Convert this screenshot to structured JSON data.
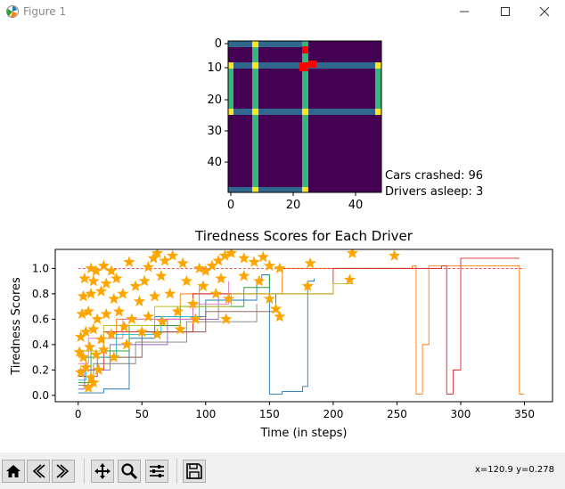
{
  "window": {
    "title": "Figure 1",
    "icons": {
      "app": "matplotlib-icon",
      "minimize": "minimize-icon",
      "maximize": "maximize-icon",
      "close": "close-icon"
    }
  },
  "grid_plot": {
    "yticks": [
      "0",
      "10",
      "20",
      "30",
      "40"
    ],
    "xticks": [
      "0",
      "20",
      "40"
    ],
    "colors": {
      "background": "#440154",
      "road_h": "#31688e",
      "road_v": "#35b779",
      "intersection": "#fde725",
      "car": "#ff0000"
    }
  },
  "status": {
    "cars_crashed": "Cars crashed: 96",
    "drivers_asleep": "Drivers asleep: 3"
  },
  "chart_data": {
    "type": "line",
    "title": "Tiredness Scores for Each Driver",
    "xlabel": "Time (in steps)",
    "ylabel": "Tiredness Scores",
    "xticks": [
      "0",
      "50",
      "100",
      "150",
      "200",
      "250",
      "300",
      "350"
    ],
    "yticks": [
      "0.0",
      "0.2",
      "0.4",
      "0.6",
      "0.8",
      "1.0"
    ],
    "xlim": [
      -18,
      372
    ],
    "ylim": [
      -0.05,
      1.15
    ],
    "threshold": 1.0,
    "marker_color": "#ffa500",
    "star_points": [
      [
        10,
        1.0
      ],
      [
        14,
        0.98
      ],
      [
        20,
        1.02
      ],
      [
        26,
        0.98
      ],
      [
        40,
        1.05
      ],
      [
        55,
        1.01
      ],
      [
        59,
        1.08
      ],
      [
        62,
        1.12
      ],
      [
        68,
        1.06
      ],
      [
        74,
        1.1
      ],
      [
        82,
        1.04
      ],
      [
        95,
        1.0
      ],
      [
        100,
        0.98
      ],
      [
        105,
        1.02
      ],
      [
        110,
        1.06
      ],
      [
        115,
        1.1
      ],
      [
        120,
        1.12
      ],
      [
        130,
        1.08
      ],
      [
        138,
        1.05
      ],
      [
        145,
        1.09
      ],
      [
        150,
        1.02
      ],
      [
        158,
        1.0
      ],
      [
        182,
        1.04
      ],
      [
        215,
        1.12
      ],
      [
        248,
        1.1
      ],
      [
        5,
        0.92
      ],
      [
        12,
        0.9
      ],
      [
        22,
        0.88
      ],
      [
        30,
        0.92
      ],
      [
        45,
        0.86
      ],
      [
        52,
        0.9
      ],
      [
        65,
        0.94
      ],
      [
        85,
        0.9
      ],
      [
        98,
        0.86
      ],
      [
        112,
        0.92
      ],
      [
        130,
        0.94
      ],
      [
        142,
        0.9
      ],
      [
        180,
        0.86
      ],
      [
        213,
        0.91
      ],
      [
        4,
        0.78
      ],
      [
        10,
        0.8
      ],
      [
        18,
        0.82
      ],
      [
        28,
        0.76
      ],
      [
        35,
        0.8
      ],
      [
        48,
        0.74
      ],
      [
        60,
        0.78
      ],
      [
        72,
        0.8
      ],
      [
        90,
        0.72
      ],
      [
        108,
        0.8
      ],
      [
        118,
        0.76
      ],
      [
        150,
        0.76
      ],
      [
        155,
        0.68
      ],
      [
        3,
        0.64
      ],
      [
        8,
        0.66
      ],
      [
        15,
        0.6
      ],
      [
        22,
        0.64
      ],
      [
        32,
        0.66
      ],
      [
        42,
        0.6
      ],
      [
        55,
        0.62
      ],
      [
        66,
        0.58
      ],
      [
        78,
        0.66
      ],
      [
        92,
        0.6
      ],
      [
        116,
        0.6
      ],
      [
        158,
        0.62
      ],
      [
        2,
        0.46
      ],
      [
        6,
        0.5
      ],
      [
        12,
        0.52
      ],
      [
        18,
        0.44
      ],
      [
        26,
        0.48
      ],
      [
        36,
        0.54
      ],
      [
        50,
        0.5
      ],
      [
        62,
        0.48
      ],
      [
        80,
        0.52
      ],
      [
        1,
        0.34
      ],
      [
        4,
        0.3
      ],
      [
        9,
        0.38
      ],
      [
        14,
        0.32
      ],
      [
        20,
        0.36
      ],
      [
        28,
        0.3
      ],
      [
        38,
        0.4
      ],
      [
        2,
        0.18
      ],
      [
        6,
        0.22
      ],
      [
        10,
        0.14
      ],
      [
        16,
        0.2
      ],
      [
        8,
        0.06
      ],
      [
        12,
        0.1
      ]
    ],
    "series": [
      {
        "color": "#1f77b4",
        "points": [
          [
            0,
            0.02
          ],
          [
            20,
            0.05
          ],
          [
            40,
            0.45
          ],
          [
            60,
            0.62
          ],
          [
            100,
            0.75
          ],
          [
            140,
            0.9
          ],
          [
            144,
            0.95
          ],
          [
            150,
            0.01
          ],
          [
            160,
            0.03
          ],
          [
            176,
            0.07
          ],
          [
            180,
            0.9
          ],
          [
            185,
            0.92
          ]
        ]
      },
      {
        "color": "#ff7f0e",
        "points": [
          [
            0,
            0.3
          ],
          [
            30,
            0.6
          ],
          [
            80,
            0.8
          ],
          [
            160,
            1.0
          ],
          [
            262,
            1.02
          ],
          [
            265,
            0.01
          ],
          [
            270,
            0.4
          ],
          [
            275,
            1.02
          ],
          [
            330,
            1.02
          ],
          [
            342,
            1.02
          ],
          [
            346,
            0.01
          ],
          [
            350,
            0.01
          ]
        ]
      },
      {
        "color": "#d62728",
        "points": [
          [
            0,
            0.2
          ],
          [
            20,
            0.5
          ],
          [
            90,
            0.8
          ],
          [
            200,
            1.0
          ],
          [
            285,
            1.02
          ],
          [
            289,
            0.01
          ],
          [
            294,
            0.2
          ],
          [
            300,
            1.08
          ],
          [
            346,
            1.08
          ]
        ]
      },
      {
        "color": "#2ca02c",
        "points": [
          [
            0,
            0.1
          ],
          [
            10,
            0.35
          ],
          [
            40,
            0.55
          ],
          [
            80,
            0.7
          ],
          [
            130,
            0.85
          ],
          [
            150,
            0.95
          ]
        ]
      },
      {
        "color": "#9467bd",
        "points": [
          [
            0,
            0.05
          ],
          [
            5,
            0.2
          ],
          [
            25,
            0.4
          ],
          [
            70,
            0.6
          ],
          [
            110,
            0.78
          ]
        ]
      },
      {
        "color": "#8c564b",
        "points": [
          [
            0,
            0.15
          ],
          [
            15,
            0.3
          ],
          [
            50,
            0.5
          ],
          [
            100,
            0.66
          ],
          [
            155,
            0.8
          ]
        ]
      },
      {
        "color": "#e377c2",
        "points": [
          [
            0,
            0.25
          ],
          [
            8,
            0.45
          ],
          [
            35,
            0.6
          ],
          [
            90,
            0.72
          ],
          [
            118,
            0.9
          ]
        ]
      },
      {
        "color": "#7f7f7f",
        "points": [
          [
            0,
            0.08
          ],
          [
            12,
            0.25
          ],
          [
            45,
            0.42
          ],
          [
            85,
            0.58
          ],
          [
            140,
            0.72
          ]
        ]
      },
      {
        "color": "#bcbd22",
        "points": [
          [
            0,
            0.35
          ],
          [
            20,
            0.55
          ],
          [
            60,
            0.7
          ],
          [
            120,
            0.8
          ],
          [
            200,
            0.88
          ],
          [
            215,
            0.9
          ]
        ]
      },
      {
        "color": "#17becf",
        "points": [
          [
            0,
            0.12
          ],
          [
            6,
            0.3
          ],
          [
            30,
            0.48
          ],
          [
            65,
            0.62
          ],
          [
            95,
            0.86
          ]
        ]
      }
    ]
  },
  "toolbar": {
    "icons": [
      "home-icon",
      "back-icon",
      "forward-icon",
      "pan-icon",
      "zoom-icon",
      "configure-subplots-icon",
      "save-icon"
    ],
    "coords": "x=120.9 y=0.278"
  }
}
